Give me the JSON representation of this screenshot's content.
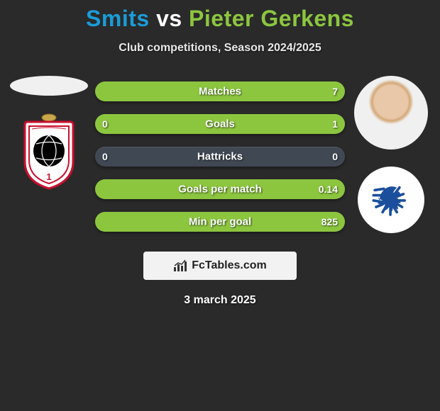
{
  "title": {
    "player1": "Smits",
    "vs": "vs",
    "player2": "Pieter Gerkens",
    "color1": "#1a9cd8",
    "color_vs": "#ffffff",
    "color2": "#8cc63f"
  },
  "subtitle": "Club competitions, Season 2024/2025",
  "date": "3 march 2025",
  "watermark_text": "FcTables.com",
  "bar_style": {
    "track_color": "#404854",
    "fill_color1": "#1a9cd8",
    "fill_color2": "#8cc63f",
    "label_fontsize": 15,
    "value_fontsize": 14,
    "height": 28
  },
  "stats": [
    {
      "label": "Matches",
      "left_val": "",
      "right_val": "7",
      "left_pct": 0,
      "right_pct": 100
    },
    {
      "label": "Goals",
      "left_val": "0",
      "right_val": "1",
      "left_pct": 0,
      "right_pct": 100
    },
    {
      "label": "Hattricks",
      "left_val": "0",
      "right_val": "0",
      "left_pct": 0,
      "right_pct": 0
    },
    {
      "label": "Goals per match",
      "left_val": "",
      "right_val": "0.14",
      "left_pct": 0,
      "right_pct": 100
    },
    {
      "label": "Min per goal",
      "left_val": "",
      "right_val": "825",
      "left_pct": 0,
      "right_pct": 100
    }
  ],
  "badges": {
    "left_club": "Royal Antwerp FC",
    "right_club": "KAA Gent",
    "antwerp_colors": {
      "shield_bg": "#ffffff",
      "inner": "#c8102e",
      "ball": "#000000",
      "text": "#c8102e"
    },
    "gent_colors": {
      "bg": "#ffffff",
      "head": "#1b4f9c"
    }
  }
}
